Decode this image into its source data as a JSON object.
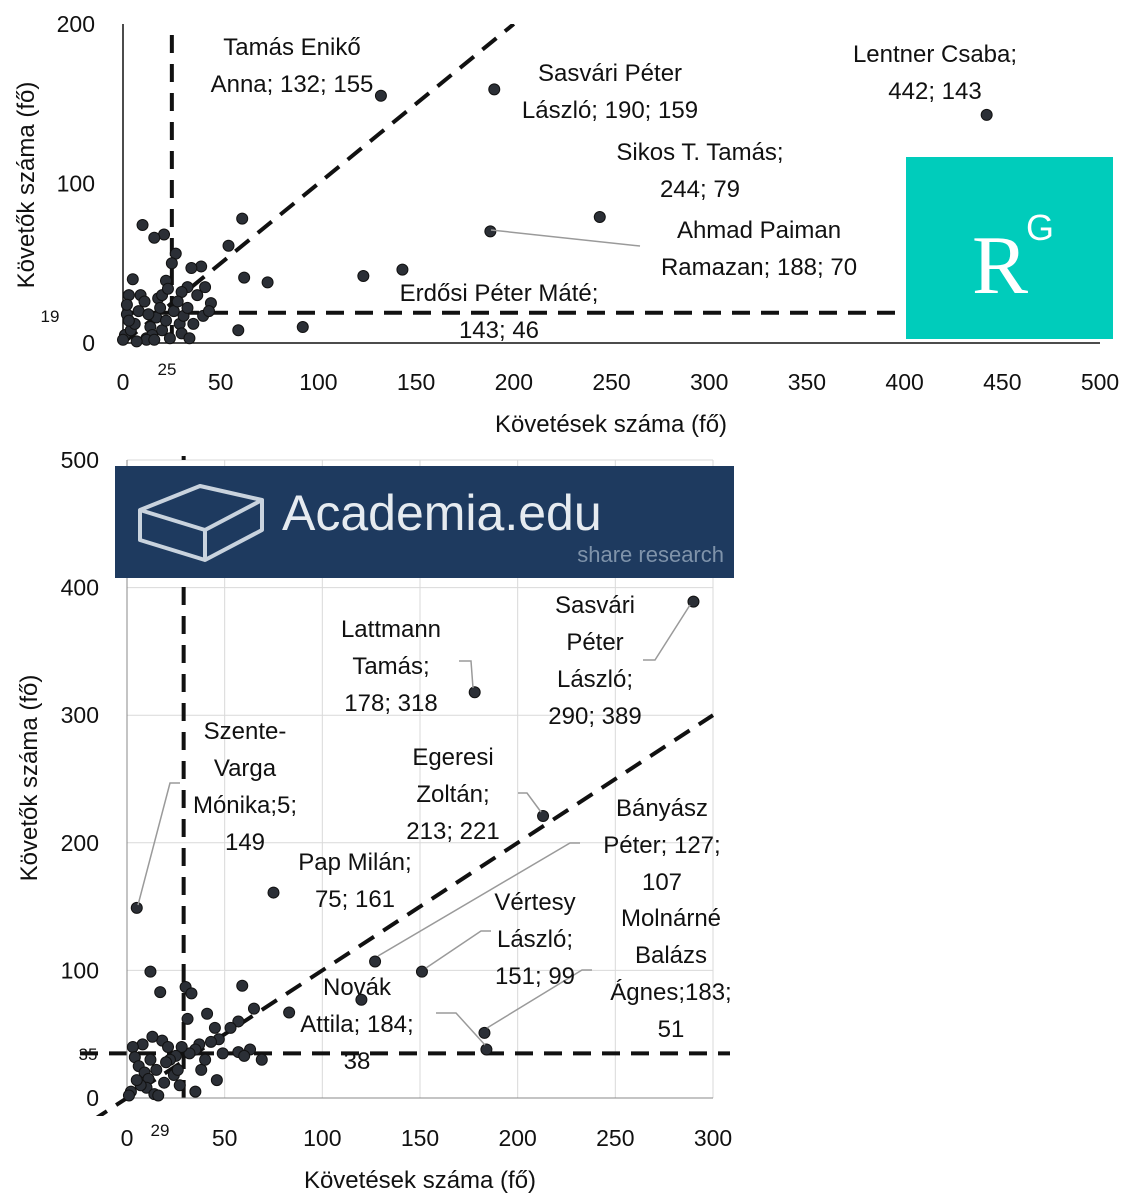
{
  "chart_data": [
    {
      "type": "scatter",
      "xlabel": "Követések száma (fő)",
      "ylabel": "Követők száma (fő)",
      "xlim": [
        0,
        500
      ],
      "ylim": [
        0,
        200
      ],
      "xticks": [
        "0",
        "50",
        "100",
        "150",
        "200",
        "250",
        "300",
        "350",
        "400",
        "450",
        "500"
      ],
      "yticks": [
        "0",
        "100",
        "200"
      ],
      "grid": false,
      "x_threshold": 25,
      "x_threshold_label": "25",
      "y_threshold": 19,
      "y_threshold_label": "19",
      "diagonal_line": "y = x",
      "logo": {
        "text": "R",
        "superscript": "G",
        "color": "#00CCBB"
      },
      "annotations": [
        {
          "lines": [
            "Tamás Enikő",
            "Anna; 132; 155"
          ],
          "x": 132,
          "y": 155
        },
        {
          "lines": [
            "Sasvári Péter",
            "László; 190; 159"
          ],
          "x": 190,
          "y": 159
        },
        {
          "lines": [
            "Lentner Csaba;",
            "442; 143"
          ],
          "x": 442,
          "y": 143
        },
        {
          "lines": [
            "Sikos T. Tamás;",
            "244; 79"
          ],
          "x": 244,
          "y": 79
        },
        {
          "lines": [
            "Ahmad Paiman",
            "Ramazan; 188; 70"
          ],
          "x": 188,
          "y": 70
        },
        {
          "lines": [
            "Erdősi Péter Máté;",
            "143; 46"
          ],
          "x": 143,
          "y": 46
        }
      ],
      "points": [
        [
          132,
          155
        ],
        [
          190,
          159
        ],
        [
          442,
          143
        ],
        [
          244,
          79
        ],
        [
          188,
          70
        ],
        [
          143,
          46
        ],
        [
          123,
          42
        ],
        [
          61,
          78
        ],
        [
          54,
          61
        ],
        [
          62,
          41
        ],
        [
          74,
          38
        ],
        [
          92,
          10
        ],
        [
          59,
          8
        ],
        [
          45,
          25
        ],
        [
          42,
          35
        ],
        [
          40,
          48
        ],
        [
          35,
          47
        ],
        [
          33,
          35
        ],
        [
          30,
          32
        ],
        [
          27,
          56
        ],
        [
          25,
          50
        ],
        [
          22,
          39
        ],
        [
          21,
          68
        ],
        [
          16,
          66
        ],
        [
          10,
          74
        ],
        [
          9,
          30
        ],
        [
          5,
          40
        ],
        [
          3,
          30
        ],
        [
          2,
          18
        ],
        [
          1,
          5
        ],
        [
          0,
          2
        ],
        [
          4,
          8
        ],
        [
          6,
          12
        ],
        [
          8,
          20
        ],
        [
          11,
          26
        ],
        [
          12,
          3
        ],
        [
          14,
          10
        ],
        [
          15,
          5
        ],
        [
          17,
          16
        ],
        [
          18,
          28
        ],
        [
          19,
          22
        ],
        [
          20,
          8
        ],
        [
          22,
          14
        ],
        [
          24,
          3
        ],
        [
          26,
          20
        ],
        [
          28,
          26
        ],
        [
          29,
          12
        ],
        [
          30,
          6
        ],
        [
          31,
          17
        ],
        [
          33,
          22
        ],
        [
          34,
          3
        ],
        [
          36,
          12
        ],
        [
          38,
          30
        ],
        [
          41,
          17
        ],
        [
          44,
          20
        ],
        [
          12,
          2
        ],
        [
          7,
          1
        ],
        [
          3,
          14
        ],
        [
          2,
          24
        ],
        [
          13,
          18
        ],
        [
          16,
          2
        ],
        [
          20,
          30
        ],
        [
          23,
          34
        ]
      ]
    },
    {
      "type": "scatter",
      "xlabel": "Követések száma (fő)",
      "ylabel": "Követők száma (fő)",
      "xlim": [
        0,
        300
      ],
      "ylim": [
        0,
        500
      ],
      "xticks": [
        "0",
        "50",
        "100",
        "150",
        "200",
        "250",
        "300"
      ],
      "yticks": [
        "0",
        "100",
        "200",
        "300",
        "400",
        "500"
      ],
      "grid": true,
      "x_threshold": 29,
      "x_threshold_label": "29",
      "y_threshold": 35,
      "y_threshold_label": "35",
      "diagonal_line": "y = x",
      "logo": {
        "text": "Academia.edu",
        "subtext": "share research",
        "color": "#1E3A5F"
      },
      "annotations": [
        {
          "lines": [
            "Lattmann",
            "Tamás;",
            "178; 318"
          ],
          "x": 178,
          "y": 318
        },
        {
          "lines": [
            "Sasvári",
            "Péter",
            "László;",
            "290; 389"
          ],
          "x": 290,
          "y": 389
        },
        {
          "lines": [
            "Szente-",
            "Varga",
            "Mónika;5;",
            "149"
          ],
          "x": 5,
          "y": 149
        },
        {
          "lines": [
            "Egeresi",
            "Zoltán;",
            "213; 221"
          ],
          "x": 213,
          "y": 221
        },
        {
          "lines": [
            "Bányász",
            "Péter; 127;",
            "107"
          ],
          "x": 127,
          "y": 107
        },
        {
          "lines": [
            "Pap Milán;",
            "75; 161"
          ],
          "x": 75,
          "y": 161
        },
        {
          "lines": [
            "Vértesy",
            "László;",
            "151; 99"
          ],
          "x": 151,
          "y": 99
        },
        {
          "lines": [
            "Molnárné",
            "Balázs",
            "Ágnes;183;",
            "51"
          ],
          "x": 183,
          "y": 51
        },
        {
          "lines": [
            "Novák",
            "Attila; 184;",
            "38"
          ],
          "x": 184,
          "y": 38
        }
      ],
      "points": [
        [
          178,
          318
        ],
        [
          290,
          389
        ],
        [
          5,
          149
        ],
        [
          213,
          221
        ],
        [
          127,
          107
        ],
        [
          75,
          161
        ],
        [
          151,
          99
        ],
        [
          183,
          51
        ],
        [
          184,
          38
        ],
        [
          120,
          77
        ],
        [
          12,
          99
        ],
        [
          30,
          87
        ],
        [
          33,
          82
        ],
        [
          17,
          83
        ],
        [
          59,
          88
        ],
        [
          65,
          70
        ],
        [
          83,
          67
        ],
        [
          57,
          60
        ],
        [
          31,
          62
        ],
        [
          41,
          66
        ],
        [
          45,
          55
        ],
        [
          53,
          55
        ],
        [
          47,
          46
        ],
        [
          43,
          44
        ],
        [
          37,
          42
        ],
        [
          35,
          38
        ],
        [
          32,
          35
        ],
        [
          28,
          40
        ],
        [
          25,
          33
        ],
        [
          22,
          30
        ],
        [
          20,
          28
        ],
        [
          18,
          45
        ],
        [
          13,
          48
        ],
        [
          8,
          42
        ],
        [
          3,
          40
        ],
        [
          4,
          32
        ],
        [
          6,
          25
        ],
        [
          9,
          20
        ],
        [
          11,
          15
        ],
        [
          10,
          8
        ],
        [
          14,
          3
        ],
        [
          2,
          5
        ],
        [
          7,
          10
        ],
        [
          15,
          22
        ],
        [
          24,
          18
        ],
        [
          27,
          10
        ],
        [
          38,
          22
        ],
        [
          46,
          14
        ],
        [
          63,
          38
        ],
        [
          69,
          30
        ],
        [
          49,
          35
        ],
        [
          57,
          36
        ],
        [
          35,
          5
        ],
        [
          26,
          22
        ],
        [
          19,
          12
        ],
        [
          16,
          2
        ],
        [
          1,
          2
        ],
        [
          5,
          14
        ],
        [
          12,
          30
        ],
        [
          21,
          40
        ],
        [
          40,
          30
        ],
        [
          60,
          33
        ]
      ]
    }
  ]
}
